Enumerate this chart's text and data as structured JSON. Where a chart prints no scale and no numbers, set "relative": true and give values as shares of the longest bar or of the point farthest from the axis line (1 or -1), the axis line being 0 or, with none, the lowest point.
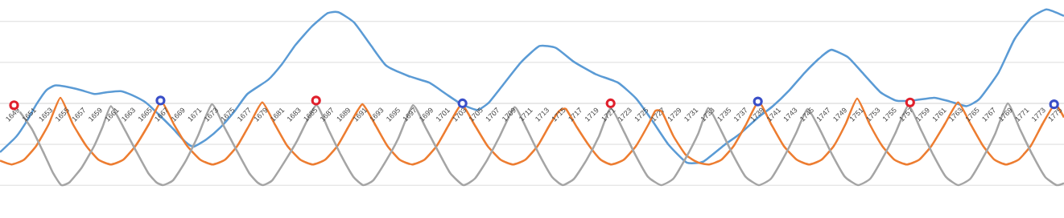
{
  "chart_data": {
    "type": "line",
    "relative": true,
    "grid": "y",
    "line_style": "solid",
    "xlim": [
      1647.6,
      1776.2
    ],
    "xticks": [
      1649,
      1651,
      1653,
      1655,
      1657,
      1659,
      1661,
      1663,
      1665,
      1667,
      1669,
      1671,
      1673,
      1675,
      1677,
      1679,
      1681,
      1683,
      1685,
      1687,
      1689,
      1691,
      1693,
      1695,
      1697,
      1699,
      1701,
      1703,
      1705,
      1707,
      1709,
      1711,
      1713,
      1715,
      1717,
      1719,
      1721,
      1723,
      1725,
      1727,
      1729,
      1731,
      1733,
      1735,
      1737,
      1739,
      1741,
      1743,
      1745,
      1747,
      1749,
      1751,
      1753,
      1755,
      1757,
      1759,
      1761,
      1763,
      1765,
      1767,
      1769,
      1771,
      1773,
      1775
    ],
    "series": [
      {
        "marker": "none",
        "color": "#5b9bd5",
        "x": [
          1647.6,
          1649.6,
          1650.9,
          1652.0,
          1653.2,
          1654.2,
          1655.4,
          1657.4,
          1659.0,
          1660.6,
          1662.2,
          1663.5,
          1665.2,
          1666.8,
          1668.4,
          1670.0,
          1671.0,
          1672.6,
          1674.2,
          1675.9,
          1677.5,
          1680.0,
          1681.7,
          1683.3,
          1685.3,
          1687.2,
          1688.5,
          1690.4,
          1692.4,
          1694.3,
          1697.0,
          1699.5,
          1701.5,
          1703.4,
          1705.3,
          1706.7,
          1708.6,
          1710.6,
          1712.8,
          1714.8,
          1717.0,
          1719.6,
          1722.3,
          1724.5,
          1726.4,
          1728.4,
          1730.6,
          1732.6,
          1735.2,
          1737.1,
          1739.1,
          1741.0,
          1743.0,
          1744.9,
          1746.9,
          1748.1,
          1750.1,
          1752.0,
          1754.0,
          1755.9,
          1757.9,
          1760.5,
          1762.4,
          1764.4,
          1766.0,
          1768.3,
          1770.2,
          1772.2,
          1774.1,
          1776.2
        ],
        "values": [
          -0.52,
          -0.35,
          -0.18,
          -0.01,
          0.14,
          0.19,
          0.18,
          0.14,
          0.1,
          0.12,
          0.13,
          0.09,
          0.01,
          -0.12,
          -0.26,
          -0.41,
          -0.46,
          -0.38,
          -0.26,
          -0.09,
          0.1,
          0.25,
          0.42,
          0.62,
          0.82,
          0.96,
          0.97,
          0.86,
          0.62,
          0.4,
          0.29,
          0.22,
          0.1,
          -0.01,
          -0.07,
          0.01,
          0.22,
          0.44,
          0.61,
          0.59,
          0.44,
          0.31,
          0.22,
          0.05,
          -0.18,
          -0.44,
          -0.63,
          -0.62,
          -0.44,
          -0.32,
          -0.16,
          -0.03,
          0.14,
          0.33,
          0.5,
          0.57,
          0.49,
          0.31,
          0.12,
          0.03,
          0.03,
          0.06,
          0.02,
          -0.03,
          0.05,
          0.33,
          0.68,
          0.91,
          1.0,
          0.93
        ]
      },
      {
        "marker": "none",
        "color": "#ed7d31",
        "x": [
          1647.6,
          1649,
          1650.5,
          1652,
          1653.5,
          1654.9,
          1656.4,
          1658,
          1659.5,
          1661,
          1662.5,
          1664,
          1665.6,
          1667.1,
          1668.6,
          1670.2,
          1671.8,
          1673.3,
          1674.8,
          1676.3,
          1677.8,
          1679.3,
          1680.8,
          1682.3,
          1683.9,
          1685.4,
          1686.9,
          1688.4,
          1689.9,
          1691.4,
          1692.9,
          1694.4,
          1695.9,
          1697.4,
          1698.9,
          1700.4,
          1701.9,
          1703.4,
          1704.9,
          1706.5,
          1708.1,
          1709.6,
          1711.1,
          1712.6,
          1714.1,
          1715.2,
          1716,
          1717.3,
          1718.8,
          1720.2,
          1721.5,
          1723,
          1724.5,
          1726,
          1726.8,
          1727.6,
          1729,
          1730.5,
          1732,
          1733.3,
          1734.8,
          1736.3,
          1737.8,
          1739.3,
          1740.8,
          1742.3,
          1743.9,
          1745.4,
          1746.9,
          1748.4,
          1749.8,
          1751.2,
          1752.7,
          1754.2,
          1755.7,
          1757.2,
          1758.7,
          1760.2,
          1761.8,
          1763.4,
          1764.9,
          1766.4,
          1767.8,
          1769.2,
          1770.7,
          1772.2,
          1773.6,
          1775.1,
          1776.2
        ],
        "values": [
          -0.61,
          -0.65,
          -0.6,
          -0.45,
          -0.22,
          0.06,
          -0.22,
          -0.45,
          -0.6,
          -0.65,
          -0.6,
          -0.45,
          -0.22,
          0.02,
          -0.22,
          -0.45,
          -0.6,
          -0.65,
          -0.6,
          -0.45,
          -0.22,
          0.01,
          -0.22,
          -0.45,
          -0.6,
          -0.65,
          -0.6,
          -0.45,
          -0.22,
          -0.01,
          -0.22,
          -0.45,
          -0.6,
          -0.65,
          -0.6,
          -0.45,
          -0.22,
          -0.01,
          -0.22,
          -0.45,
          -0.6,
          -0.65,
          -0.6,
          -0.45,
          -0.22,
          -0.08,
          -0.06,
          -0.25,
          -0.45,
          -0.6,
          -0.65,
          -0.6,
          -0.45,
          -0.22,
          -0.08,
          -0.09,
          -0.35,
          -0.55,
          -0.63,
          -0.65,
          -0.6,
          -0.45,
          -0.22,
          0.02,
          -0.22,
          -0.45,
          -0.6,
          -0.65,
          -0.6,
          -0.45,
          -0.22,
          0.05,
          -0.22,
          -0.45,
          -0.6,
          -0.65,
          -0.6,
          -0.45,
          -0.22,
          0.01,
          -0.22,
          -0.45,
          -0.6,
          -0.65,
          -0.6,
          -0.45,
          -0.22,
          -0.01,
          -0.15
        ]
      },
      {
        "marker": "none",
        "color": "#a5a5a5",
        "x": [
          1650,
          1651.5,
          1653,
          1654,
          1655,
          1656,
          1657.5,
          1659,
          1660,
          1661,
          1662.5,
          1664,
          1665.5,
          1666.5,
          1667.3,
          1668.5,
          1670,
          1671.5,
          1673.2,
          1674.7,
          1676.2,
          1677.7,
          1678.7,
          1679.4,
          1680.5,
          1682,
          1683.5,
          1685.8,
          1687.3,
          1688.8,
          1690.3,
          1691.5,
          1692.7,
          1694.2,
          1695.7,
          1697.5,
          1699,
          1700.5,
          1702,
          1703.6,
          1705,
          1706.5,
          1708,
          1709.8,
          1711.3,
          1712.8,
          1714.3,
          1715.6,
          1717,
          1718.5,
          1720,
          1721.4,
          1722.9,
          1724.4,
          1725.9,
          1727.5,
          1729,
          1730.5,
          1732,
          1733.2,
          1734.7,
          1736.2,
          1737.7,
          1739.3,
          1740.8,
          1742.3,
          1743.8,
          1745.2,
          1746.7,
          1748.2,
          1749.7,
          1751.3,
          1752.8,
          1754.3,
          1755.8,
          1757.4,
          1758.9,
          1760.4,
          1761.9,
          1763.4,
          1764.9,
          1766.4,
          1767.9,
          1769.4,
          1770.9,
          1772.4,
          1773.9,
          1775.3,
          1776.2
        ],
        "values": [
          -0.09,
          -0.28,
          -0.55,
          -0.74,
          -0.87,
          -0.84,
          -0.68,
          -0.45,
          -0.25,
          -0.03,
          -0.25,
          -0.5,
          -0.74,
          -0.84,
          -0.87,
          -0.82,
          -0.62,
          -0.35,
          -0.01,
          -0.25,
          -0.5,
          -0.74,
          -0.84,
          -0.87,
          -0.82,
          -0.62,
          -0.4,
          -0.02,
          -0.28,
          -0.55,
          -0.78,
          -0.87,
          -0.82,
          -0.62,
          -0.38,
          -0.02,
          -0.25,
          -0.5,
          -0.74,
          -0.87,
          -0.8,
          -0.6,
          -0.35,
          -0.04,
          -0.28,
          -0.55,
          -0.78,
          -0.87,
          -0.8,
          -0.6,
          -0.35,
          -0.05,
          -0.28,
          -0.55,
          -0.78,
          -0.87,
          -0.8,
          -0.58,
          -0.32,
          -0.05,
          -0.28,
          -0.55,
          -0.78,
          -0.87,
          -0.8,
          -0.58,
          -0.32,
          -0.06,
          -0.28,
          -0.55,
          -0.78,
          -0.87,
          -0.8,
          -0.58,
          -0.32,
          -0.02,
          -0.28,
          -0.55,
          -0.78,
          -0.87,
          -0.8,
          -0.58,
          -0.32,
          0.0,
          -0.28,
          -0.55,
          -0.78,
          -0.87,
          -0.85
        ]
      },
      {
        "type": "scatter",
        "marker": "circle",
        "color": "#e0202c",
        "x": [
          1649.3,
          1685.8,
          1721.4,
          1757.6
        ],
        "values": [
          -0.02,
          0.03,
          0.0,
          0.01
        ]
      },
      {
        "type": "scatter",
        "marker": "circle",
        "color": "#3a4fc8",
        "x": [
          1667,
          1703.5,
          1739.2,
          1775
        ],
        "values": [
          0.03,
          0.0,
          0.02,
          -0.01
        ]
      }
    ]
  }
}
